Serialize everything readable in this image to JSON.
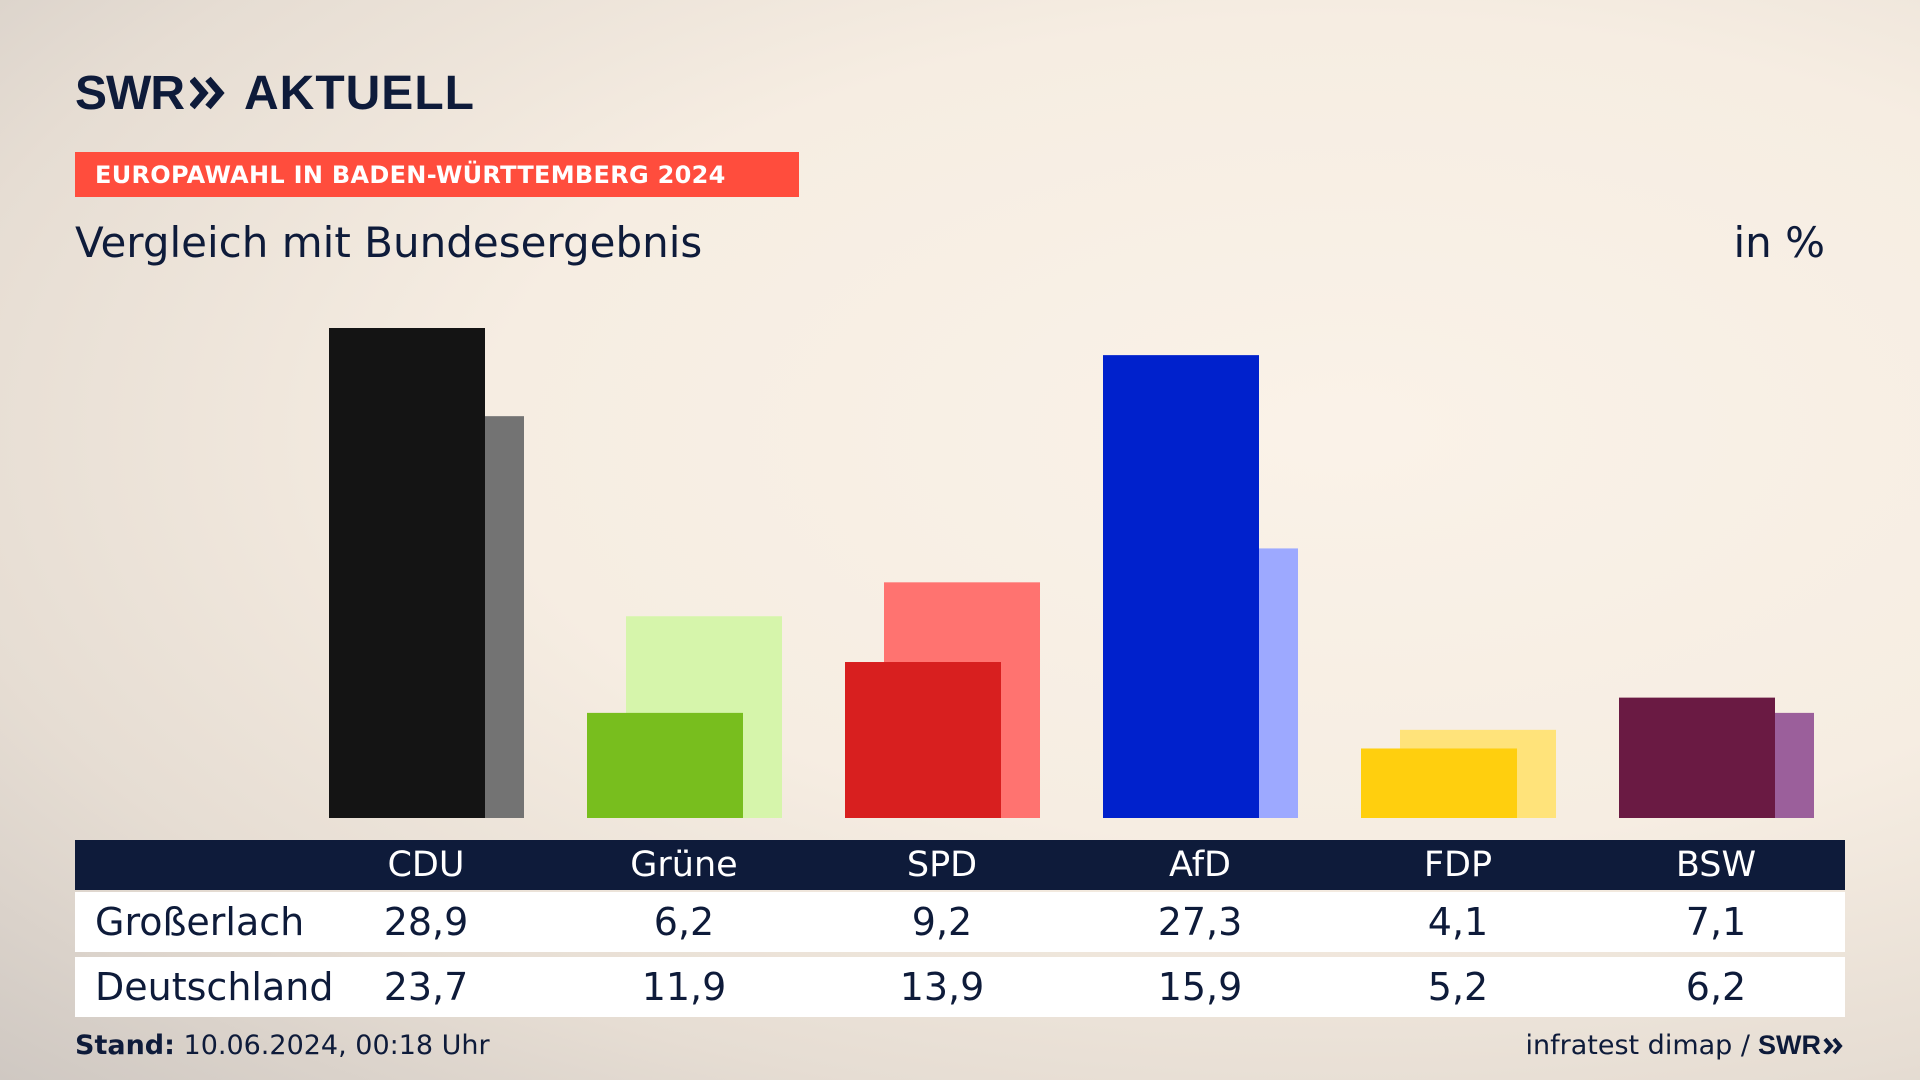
{
  "brand": {
    "logo_short": "SWR",
    "logo_name": "AKTUELL"
  },
  "banner": "EUROPAWAHL IN BADEN-WÜRTTEMBERG 2024",
  "subtitle": "Vergleich mit Bundesergebnis",
  "unit": "in %",
  "table": {
    "rows": [
      {
        "label": "Großerlach",
        "values": [
          "28,9",
          "6,2",
          "9,2",
          "27,3",
          "4,1",
          "7,1"
        ]
      },
      {
        "label": "Deutschland",
        "values": [
          "23,7",
          "11,9",
          "13,9",
          "15,9",
          "5,2",
          "6,2"
        ]
      }
    ]
  },
  "footer": {
    "stand_label": "Stand:",
    "stand_value": "10.06.2024, 00:18 Uhr",
    "source": "infratest dimap /",
    "source_logo": "SWR"
  },
  "chart_data": {
    "type": "bar",
    "categories": [
      "CDU",
      "Grüne",
      "SPD",
      "AfD",
      "FDP",
      "BSW"
    ],
    "series": [
      {
        "name": "Großerlach",
        "values": [
          28.9,
          6.2,
          9.2,
          27.3,
          4.1,
          7.1
        ],
        "colors": [
          "#141414",
          "#78be1e",
          "#d81f1f",
          "#0021cc",
          "#ffcf0e",
          "#6a1a43"
        ]
      },
      {
        "name": "Deutschland",
        "values": [
          23.7,
          11.9,
          13.9,
          15.9,
          5.2,
          6.2
        ],
        "colors": [
          "#737373",
          "#d6f5ab",
          "#ff7370",
          "#9da9ff",
          "#ffe37a",
          "#9b5f9b"
        ]
      }
    ],
    "ylim": [
      0,
      28.9
    ],
    "grid": false,
    "legend": "table-below"
  }
}
